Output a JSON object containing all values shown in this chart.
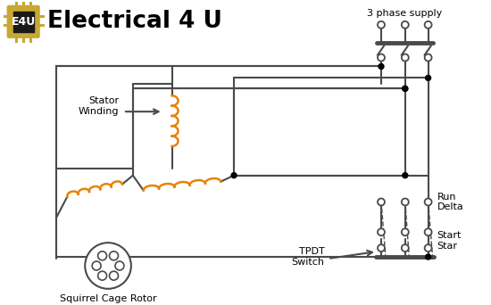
{
  "title": "Electrical 4 U",
  "bg_color": "#ffffff",
  "line_color": "#4a4a4a",
  "coil_color": "#e8820a",
  "logo_bg": "#1a1a1a",
  "logo_border": "#c8a832",
  "logo_text": "E4U",
  "label_3phase": "3 phase supply",
  "label_stator": "Stator\nWinding",
  "label_rotor": "Squirrel Cage Rotor",
  "label_tpdt": "TPDT\nSwitch",
  "label_run": "Run\nDelta",
  "label_start": "Start\nStar"
}
